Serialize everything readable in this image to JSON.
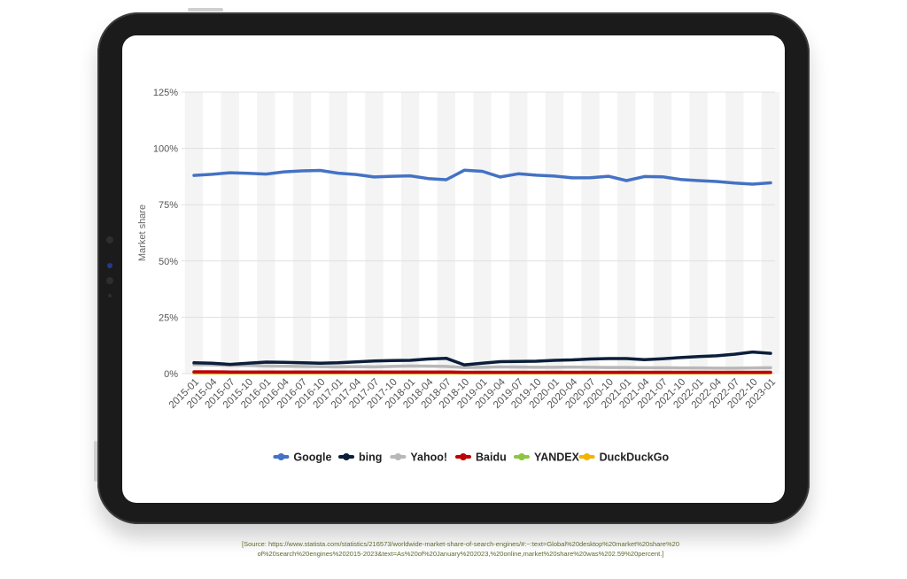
{
  "source": {
    "line1": "[Source: https://www.statista.com/statistics/216573/worldwide-market-share-of-search-engines/#:~:text=Global%20desktop%20market%20share%20",
    "line2": "of%20search%20engines%202015-2023&text=As%20of%20January%202023,%20online,market%20share%20was%202.59%20percent.]"
  },
  "chart_data": {
    "type": "line",
    "ylabel": "Market share",
    "xlabel": "",
    "ylim": [
      0,
      125
    ],
    "yticks": [
      0,
      25,
      50,
      75,
      100,
      125
    ],
    "ytick_labels": [
      "0%",
      "25%",
      "50%",
      "75%",
      "100%",
      "125%"
    ],
    "xtick_labels": [
      "2015-01",
      "2015-04",
      "2015-07",
      "2015-10",
      "2016-01",
      "2016-04",
      "2016-07",
      "2016-10",
      "2017-01",
      "2017-04",
      "2017-07",
      "2017-10",
      "2018-01",
      "2018-04",
      "2018-07",
      "2018-10",
      "2019-01",
      "2019-04",
      "2019-07",
      "2019-10",
      "2020-01",
      "2020-04",
      "2020-07",
      "2020-10",
      "2021-01",
      "2021-04",
      "2021-07",
      "2021-10",
      "2022-01",
      "2022-04",
      "2022-07",
      "2022-10",
      "2023-01"
    ],
    "grid": "horizontal",
    "legend_position": "bottom",
    "series": [
      {
        "name": "Google",
        "color": "#4472c4",
        "values": [
          88.0,
          88.5,
          89.2,
          88.9,
          88.6,
          89.6,
          90.0,
          90.2,
          89.0,
          88.4,
          87.3,
          87.6,
          87.8,
          86.6,
          86.1,
          90.3,
          89.8,
          87.3,
          88.7,
          88.1,
          87.7,
          86.9,
          87.0,
          87.6,
          85.7,
          87.5,
          87.4,
          86.2,
          85.7,
          85.3,
          84.6,
          84.1,
          84.7
        ]
      },
      {
        "name": "bing",
        "color": "#0b1f3a",
        "values": [
          4.8,
          4.6,
          4.1,
          4.6,
          5.1,
          5.0,
          4.8,
          4.6,
          4.8,
          5.2,
          5.6,
          5.8,
          5.9,
          6.5,
          6.8,
          3.9,
          4.6,
          5.3,
          5.4,
          5.5,
          5.9,
          6.1,
          6.5,
          6.7,
          6.7,
          6.2,
          6.6,
          7.1,
          7.6,
          7.9,
          8.6,
          9.6,
          9.0
        ]
      },
      {
        "name": "Yahoo!",
        "color": "#b8b8b8",
        "values": [
          4.0,
          3.9,
          3.7,
          3.6,
          3.4,
          3.3,
          3.2,
          3.1,
          3.0,
          3.1,
          3.0,
          3.2,
          3.4,
          3.3,
          3.2,
          2.7,
          2.8,
          3.0,
          2.9,
          2.8,
          2.8,
          2.9,
          2.8,
          2.7,
          2.7,
          2.6,
          2.6,
          2.5,
          2.5,
          2.4,
          2.4,
          2.5,
          2.6
        ]
      },
      {
        "name": "Baidu",
        "color": "#c00000",
        "values": [
          0.8,
          0.8,
          0.7,
          0.7,
          0.7,
          0.7,
          0.7,
          0.7,
          0.7,
          0.7,
          0.7,
          0.7,
          0.7,
          0.7,
          0.7,
          0.6,
          0.6,
          0.6,
          0.6,
          0.6,
          0.6,
          0.6,
          0.6,
          0.6,
          0.6,
          0.6,
          0.6,
          0.6,
          0.6,
          0.6,
          0.6,
          0.6,
          0.6
        ]
      },
      {
        "name": "YANDEX",
        "color": "#8dc63f",
        "values": [
          0.5,
          0.5,
          0.5,
          0.5,
          0.5,
          0.5,
          0.5,
          0.5,
          0.5,
          0.5,
          0.5,
          0.5,
          0.5,
          0.5,
          0.5,
          0.5,
          0.5,
          0.5,
          0.5,
          0.5,
          0.5,
          0.5,
          0.5,
          0.5,
          0.5,
          0.5,
          0.5,
          0.5,
          0.5,
          0.5,
          0.5,
          0.5,
          0.5
        ]
      },
      {
        "name": "DuckDuckGo",
        "color": "#f4b400",
        "values": [
          0.3,
          0.3,
          0.3,
          0.3,
          0.3,
          0.3,
          0.3,
          0.3,
          0.3,
          0.3,
          0.3,
          0.3,
          0.3,
          0.3,
          0.3,
          0.3,
          0.3,
          0.3,
          0.3,
          0.3,
          0.3,
          0.3,
          0.3,
          0.3,
          0.3,
          0.3,
          0.3,
          0.3,
          0.3,
          0.3,
          0.3,
          0.3,
          0.3
        ]
      }
    ]
  }
}
